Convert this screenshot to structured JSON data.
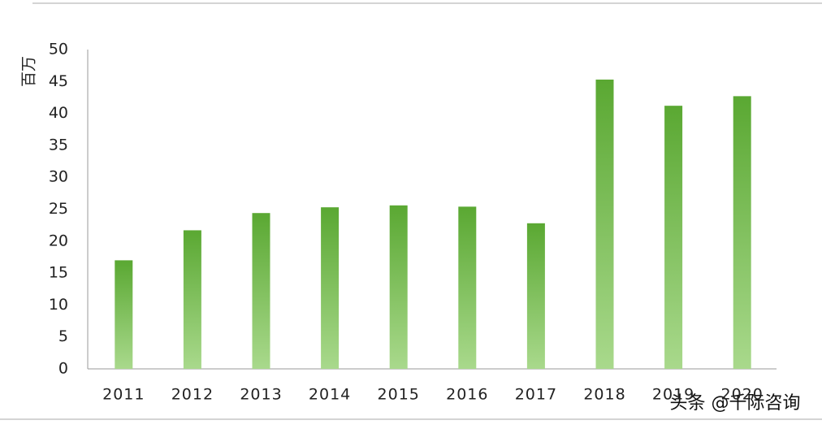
{
  "chart_data": {
    "type": "bar",
    "y_label": "百万",
    "categories": [
      "2011",
      "2012",
      "2013",
      "2014",
      "2015",
      "2016",
      "2017",
      "2018",
      "2019",
      "2020"
    ],
    "values": [
      17.0,
      21.7,
      24.4,
      25.3,
      25.6,
      25.4,
      22.8,
      45.3,
      41.2,
      42.7
    ],
    "color": "#5aa832",
    "ylim": [
      0,
      50
    ],
    "yticks": [
      0,
      5,
      10,
      15,
      20,
      25,
      30,
      35,
      40,
      45,
      50
    ],
    "grid": false,
    "credit": "头条 @千际咨询"
  }
}
